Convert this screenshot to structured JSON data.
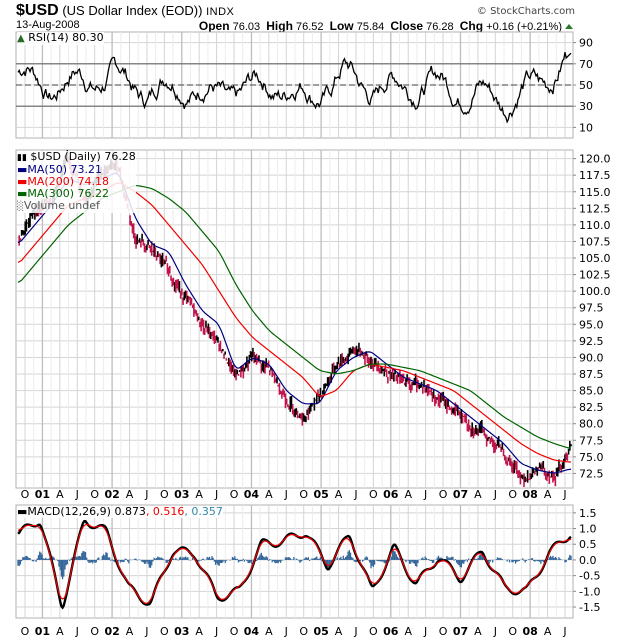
{
  "header": {
    "symbol": "$USD",
    "name": "(US Dollar Index (EOD))",
    "exchange": "INDX",
    "date": "13-Aug-2008",
    "brand": "© StockCharts.com",
    "quote": {
      "open_label": "Open",
      "open": "76.03",
      "high_label": "High",
      "high": "76.52",
      "low_label": "Low",
      "low": "75.84",
      "close_label": "Close",
      "close": "76.28",
      "chg_label": "Chg",
      "chg": "+0.16 (+0.21%)"
    }
  },
  "legends": {
    "rsi": "RSI(14) 80.30",
    "price": "$USD (Daily) 76.28",
    "ma50": "MA(50) 73.21",
    "ma200": "MA(200) 74.18",
    "ma300": "MA(300) 76.22",
    "volume": "Volume undef",
    "macd_main": "MACD(12,26,9) 0.873",
    "macd_signal": ", 0.516",
    "macd_hist": ", 0.357"
  },
  "colors": {
    "price": "#000000",
    "price_down": "#c0144a",
    "ma50": "#000080",
    "ma200": "#ee0000",
    "ma300": "#006400",
    "macd": "#000000",
    "signal": "#ee0000",
    "histogram": "#336699",
    "grid": "#d4d4d4",
    "chg_up": "#2a7a2a"
  },
  "chart_data": [
    {
      "type": "line",
      "title": "RSI(14)",
      "ylim": [
        0,
        100
      ],
      "yticks": [
        10,
        30,
        50,
        70,
        90
      ],
      "reference_lines": [
        30,
        50,
        70
      ],
      "last_value": 80.3,
      "series": [
        {
          "name": "RSI(14)",
          "x": [
            "Jul-00",
            "Jan-01",
            "Jul-01",
            "Jan-02",
            "Jul-02",
            "Jan-03",
            "Jul-03",
            "Jan-04",
            "Jul-04",
            "Jan-05",
            "Jul-05",
            "Jan-06",
            "Jul-06",
            "Jan-07",
            "Jul-07",
            "Jan-08",
            "Jul-08",
            "Aug-08"
          ],
          "values": [
            62,
            48,
            55,
            58,
            44,
            52,
            40,
            46,
            50,
            38,
            60,
            46,
            52,
            50,
            44,
            36,
            50,
            80
          ]
        }
      ]
    },
    {
      "type": "line",
      "title": "$USD (Daily) 76.28",
      "ylabel": "",
      "ylim": [
        70,
        121
      ],
      "yticks": [
        72.5,
        75.0,
        77.5,
        80.0,
        82.5,
        85.0,
        87.5,
        90.0,
        92.5,
        95.0,
        97.5,
        100.0,
        102.5,
        105.0,
        107.5,
        110.0,
        112.5,
        115.0,
        117.5,
        120.0
      ],
      "x": [
        "Sep-00",
        "Jan-01",
        "Apr-01",
        "Jul-01",
        "Oct-01",
        "Jan-02",
        "Mar-02",
        "Jul-02",
        "Oct-02",
        "Jan-03",
        "Apr-03",
        "Jul-03",
        "Oct-03",
        "Jan-04",
        "Apr-04",
        "Jul-04",
        "Oct-04",
        "Jan-05",
        "Apr-05",
        "Jul-05",
        "Oct-05",
        "Jan-06",
        "Apr-06",
        "Jul-06",
        "Oct-06",
        "Jan-07",
        "Apr-07",
        "Jul-07",
        "Oct-07",
        "Jan-08",
        "Mar-08",
        "May-08",
        "Jul-08",
        "Aug-08"
      ],
      "series": [
        {
          "name": "$USD",
          "values": [
            108,
            112,
            114,
            120,
            114,
            118,
            119,
            108,
            106,
            103,
            99,
            95,
            92,
            87,
            90,
            88,
            84,
            81,
            84,
            89,
            91,
            90,
            88,
            86,
            86,
            84,
            82,
            80,
            78,
            76,
            72,
            73,
            72.5,
            76.28
          ]
        },
        {
          "name": "MA(50)",
          "values": [
            107,
            110,
            113,
            117,
            116,
            117,
            118,
            111,
            107,
            106,
            101,
            97,
            95,
            88,
            90,
            89,
            85,
            83,
            83,
            88,
            90,
            91,
            89,
            87,
            86,
            85,
            83,
            81,
            79,
            77,
            74,
            73,
            72.5,
            73.21
          ]
        },
        {
          "name": "MA(200)",
          "values": [
            104,
            107,
            110,
            113,
            114,
            115,
            116.5,
            115,
            113,
            110,
            107,
            104,
            100,
            96,
            93,
            91,
            89,
            87,
            84,
            85,
            88,
            89,
            88.5,
            88,
            87,
            86,
            85,
            83,
            81,
            79,
            77,
            75.5,
            74.5,
            74.18
          ]
        },
        {
          "name": "MA(300)",
          "values": [
            101,
            104,
            107,
            110,
            112,
            114,
            115,
            116,
            115.5,
            114,
            112,
            109,
            106,
            101,
            97,
            94,
            92,
            90,
            88,
            87.5,
            88,
            89,
            89,
            88.5,
            88,
            87,
            86,
            85,
            83,
            81,
            79.5,
            78,
            77,
            76.22
          ]
        }
      ]
    },
    {
      "type": "line",
      "title": "MACD(12,26,9)",
      "ylim": [
        -1.8,
        1.7
      ],
      "yticks": [
        -1.5,
        -1.0,
        -0.5,
        0.0,
        0.5,
        1.0,
        1.5
      ],
      "last_values": {
        "macd": 0.873,
        "signal": 0.516,
        "histogram": 0.357
      },
      "series": [
        {
          "name": "MACD",
          "x": [
            "Sep-00",
            "Dec-00",
            "Mar-01",
            "Jun-01",
            "Sep-01",
            "Jan-02",
            "Jun-02",
            "Oct-02",
            "Feb-03",
            "Jun-03",
            "Oct-03",
            "Feb-04",
            "Jun-04",
            "Oct-04",
            "Feb-05",
            "Jun-05",
            "Oct-05",
            "Feb-06",
            "Jun-06",
            "Oct-06",
            "Feb-07",
            "Jun-07",
            "Oct-07",
            "Feb-08",
            "Jun-08",
            "Aug-08"
          ],
          "values": [
            0.8,
            1.3,
            -1.5,
            1.3,
            0.9,
            -0.9,
            -1.4,
            0.3,
            0.2,
            -1.2,
            -1.0,
            0.5,
            0.6,
            0.9,
            -0.2,
            0.8,
            -1.0,
            0.4,
            -0.8,
            0.1,
            -0.6,
            0.3,
            -0.9,
            -1.0,
            0.2,
            0.873
          ]
        },
        {
          "name": "Signal",
          "values": [
            0.7,
            1.2,
            -1.3,
            1.2,
            0.8,
            -0.8,
            -1.3,
            0.2,
            0.2,
            -1.1,
            -0.9,
            0.4,
            0.6,
            0.8,
            -0.2,
            0.7,
            -0.9,
            0.3,
            -0.7,
            0.1,
            -0.5,
            0.3,
            -0.8,
            -0.9,
            0.1,
            0.516
          ]
        },
        {
          "name": "Histogram",
          "values": [
            0.1,
            0.1,
            -0.2,
            0.1,
            0.1,
            -0.1,
            -0.1,
            0.1,
            0.0,
            -0.1,
            -0.1,
            0.1,
            0.0,
            0.1,
            0.0,
            0.1,
            -0.1,
            0.1,
            -0.1,
            0.0,
            -0.1,
            0.0,
            -0.1,
            -0.1,
            0.1,
            0.357
          ]
        }
      ]
    }
  ],
  "x_axis": {
    "labels": [
      "O",
      "01",
      "A",
      "J",
      "O",
      "02",
      "A",
      "J",
      "O",
      "03",
      "A",
      "J",
      "O",
      "04",
      "A",
      "J",
      "O",
      "05",
      "A",
      "J",
      "O",
      "06",
      "A",
      "J",
      "O",
      "07",
      "A",
      "J",
      "O",
      "08",
      "A",
      "J"
    ],
    "year_labels": [
      "01",
      "02",
      "03",
      "04",
      "05",
      "06",
      "07",
      "08"
    ]
  }
}
